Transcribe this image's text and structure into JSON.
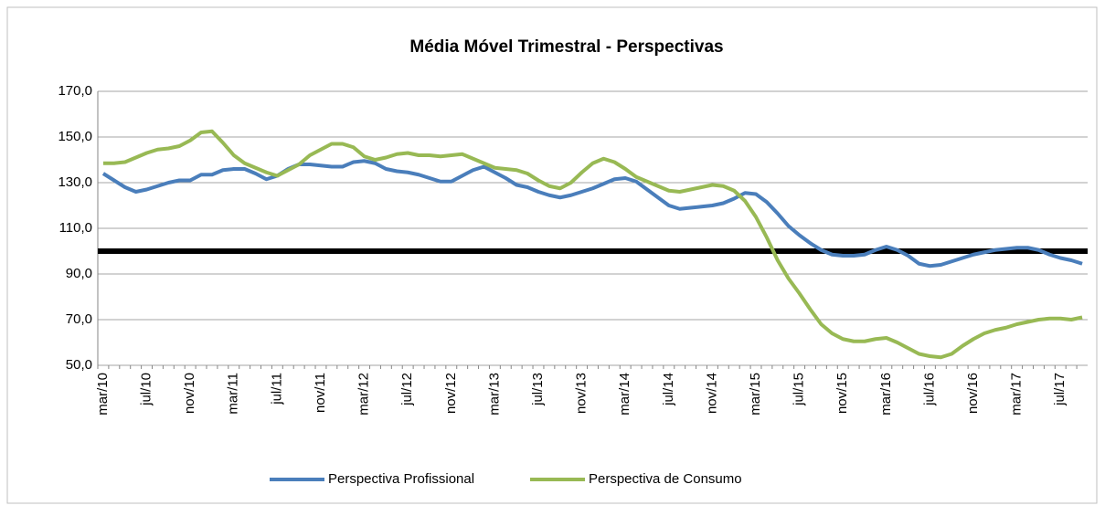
{
  "chart_data": {
    "type": "line",
    "title": "Média Móvel Trimestral - Perspectivas",
    "categories": [
      "mar/10",
      null,
      null,
      null,
      "jul/10",
      null,
      null,
      null,
      "nov/10",
      null,
      null,
      null,
      "mar/11",
      null,
      null,
      null,
      "jul/11",
      null,
      null,
      null,
      "nov/11",
      null,
      null,
      null,
      "mar/12",
      null,
      null,
      null,
      "jul/12",
      null,
      null,
      null,
      "nov/12",
      null,
      null,
      null,
      "mar/13",
      null,
      null,
      null,
      "jul/13",
      null,
      null,
      null,
      "nov/13",
      null,
      null,
      null,
      "mar/14",
      null,
      null,
      null,
      "jul/14",
      null,
      null,
      null,
      "nov/14",
      null,
      null,
      null,
      "mar/15",
      null,
      null,
      null,
      "jul/15",
      null,
      null,
      null,
      "nov/15",
      null,
      null,
      null,
      "mar/16",
      null,
      null,
      null,
      "jul/16",
      null,
      null,
      null,
      "nov/16",
      null,
      null,
      null,
      "mar/17",
      null,
      null,
      null,
      "jul/17",
      null,
      null
    ],
    "series": [
      {
        "name": "Perspectiva Profissional",
        "color": "#4a7ebb",
        "values": [
          134,
          131,
          128,
          126,
          127,
          128.5,
          130,
          131,
          131,
          133.5,
          133.5,
          135.5,
          136,
          136,
          134,
          131.5,
          133,
          136,
          138,
          138,
          137.5,
          137,
          137,
          139,
          139.5,
          138.5,
          136,
          135,
          134.5,
          133.5,
          132,
          130.5,
          130.5,
          133,
          135.5,
          137,
          134.5,
          132,
          129,
          128,
          126,
          124.5,
          123.5,
          124.5,
          126,
          127.5,
          129.5,
          131.5,
          132,
          130.5,
          127,
          123.5,
          120,
          118.5,
          119,
          119.5,
          120,
          121,
          123,
          125.5,
          125,
          121.5,
          116.5,
          111,
          107,
          103.5,
          100.5,
          98.5,
          98,
          98,
          98.5,
          100.5,
          102,
          100.5,
          98,
          94.5,
          93.5,
          94,
          95.5,
          97,
          98.5,
          99.5,
          100.5,
          101,
          101.5,
          101.5,
          100.5,
          98.5,
          97,
          96,
          94.5
        ]
      },
      {
        "name": "Perspectiva de Consumo",
        "color": "#98b954",
        "values": [
          138.5,
          138.5,
          139,
          141,
          143,
          144.5,
          145,
          146,
          148.5,
          152,
          152.5,
          147.5,
          142,
          138.5,
          136.5,
          134.5,
          133,
          135.5,
          138,
          142,
          144.5,
          147,
          147,
          145.5,
          141.5,
          140,
          141,
          142.5,
          143,
          142,
          142,
          141.5,
          142,
          142.5,
          140.5,
          138.5,
          136.5,
          136,
          135.5,
          134,
          131,
          128.5,
          127.5,
          130,
          134.5,
          138.5,
          140.5,
          139,
          136,
          132.5,
          130.5,
          128.5,
          126.5,
          126,
          127,
          128,
          129,
          128.5,
          126.5,
          122,
          115,
          106,
          96,
          88,
          81.5,
          74.5,
          68,
          64,
          61.5,
          60.5,
          60.5,
          61.5,
          62,
          60,
          57.5,
          55,
          54,
          53.5,
          55,
          58.5,
          61.5,
          64,
          65.5,
          66.5,
          68,
          69,
          70,
          70.5,
          70.5,
          70,
          71
        ]
      }
    ],
    "reference_line": 100,
    "reference_color": "#000000",
    "ylim": [
      50,
      170
    ],
    "yticks": [
      {
        "value": 50,
        "label": "50,0"
      },
      {
        "value": 70,
        "label": "70,0"
      },
      {
        "value": 90,
        "label": "90,0"
      },
      {
        "value": 110,
        "label": "110,0"
      },
      {
        "value": 130,
        "label": "130,0"
      },
      {
        "value": 150,
        "label": "150,0"
      },
      {
        "value": 170,
        "label": "170,0"
      }
    ],
    "grid": true,
    "legend": "bottom"
  }
}
